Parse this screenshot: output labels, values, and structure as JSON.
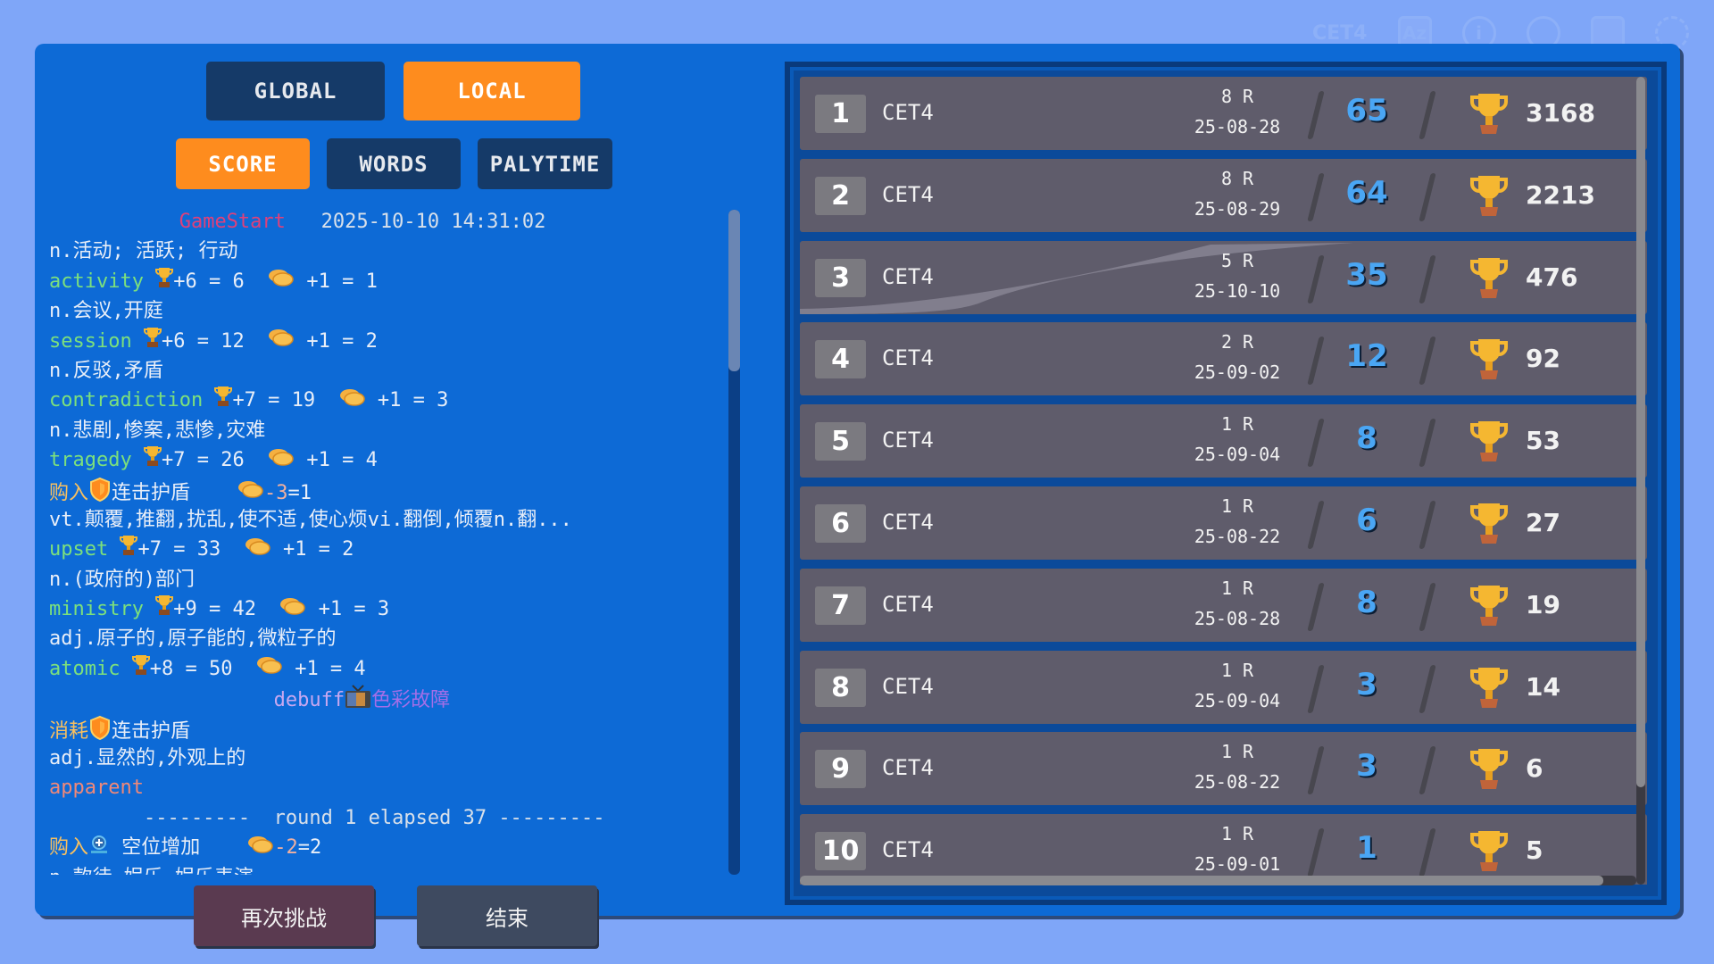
{
  "topbar": {
    "label": "CET4",
    "icons": [
      "az-sort-icon",
      "info-icon",
      "shield-outline-icon",
      "settings-toggle-icon",
      "fullscreen-icon"
    ]
  },
  "scope_tabs": [
    {
      "label": "GLOBAL",
      "active": false
    },
    {
      "label": "LOCAL",
      "active": true
    }
  ],
  "sort_tabs": [
    {
      "label": "SCORE",
      "active": true
    },
    {
      "label": "WORDS",
      "active": false
    },
    {
      "label": "PALYTIME",
      "active": false
    }
  ],
  "colors": {
    "panel": "#0d6ad6",
    "active": "#fe8c1e",
    "inactive": "#153a68",
    "word": "#7ce07c",
    "cn": "#e8eef8",
    "shop": "#f8c060",
    "gamestart": "#e0407a",
    "debuff_en": "#c8a8f0",
    "debuff_cn": "#a46ee8",
    "missed": "#f08878",
    "score": "#4aa6f4"
  },
  "log": [
    [
      {
        "t": "           "
      },
      {
        "t": "GameStart",
        "c": "gamestart"
      },
      {
        "t": "   2025-10-10 14:31:02",
        "c": "time"
      }
    ],
    [
      {
        "t": "n.活动; 活跃; 行动"
      }
    ],
    [
      {
        "t": "activity",
        "c": "word"
      },
      {
        "t": " "
      },
      {
        "i": "trophy"
      },
      {
        "t": "+6 = 6  "
      },
      {
        "i": "coin"
      },
      {
        "t": " +1 = 1"
      }
    ],
    [
      {
        "t": "n.会议,开庭"
      }
    ],
    [
      {
        "t": "session",
        "c": "word"
      },
      {
        "t": " "
      },
      {
        "i": "trophy"
      },
      {
        "t": "+6 = 12  "
      },
      {
        "i": "coin"
      },
      {
        "t": " +1 = 2"
      }
    ],
    [
      {
        "t": "n.反驳,矛盾"
      }
    ],
    [
      {
        "t": "contradiction",
        "c": "word"
      },
      {
        "t": " "
      },
      {
        "i": "trophy"
      },
      {
        "t": "+7 = 19  "
      },
      {
        "i": "coin"
      },
      {
        "t": " +1 = 3"
      }
    ],
    [
      {
        "t": "n.悲剧,惨案,悲惨,灾难"
      }
    ],
    [
      {
        "t": "tragedy",
        "c": "word"
      },
      {
        "t": " "
      },
      {
        "i": "trophy"
      },
      {
        "t": "+7 = 26  "
      },
      {
        "i": "coin"
      },
      {
        "t": " +1 = 4"
      }
    ],
    [
      {
        "t": "购入",
        "c": "shop"
      },
      {
        "i": "shield"
      },
      {
        "t": "连击护盾    "
      },
      {
        "i": "coin"
      },
      {
        "t": "-3",
        "c": "neg"
      },
      {
        "t": "=1"
      }
    ],
    [
      {
        "t": "vt.颠覆,推翻,扰乱,使不适,使心烦vi.翻倒,倾覆n.翻..."
      }
    ],
    [
      {
        "t": "upset",
        "c": "word"
      },
      {
        "t": " "
      },
      {
        "i": "trophy"
      },
      {
        "t": "+7 = 33  "
      },
      {
        "i": "coin"
      },
      {
        "t": " +1 = 2"
      }
    ],
    [
      {
        "t": "n.(政府的)部门"
      }
    ],
    [
      {
        "t": "ministry",
        "c": "word"
      },
      {
        "t": " "
      },
      {
        "i": "trophy"
      },
      {
        "t": "+9 = 42  "
      },
      {
        "i": "coin"
      },
      {
        "t": " +1 = 3"
      }
    ],
    [
      {
        "t": "adj.原子的,原子能的,微粒子的"
      }
    ],
    [
      {
        "t": "atomic",
        "c": "word"
      },
      {
        "t": " "
      },
      {
        "i": "trophy"
      },
      {
        "t": "+8 = 50  "
      },
      {
        "i": "coin"
      },
      {
        "t": " +1 = 4"
      }
    ],
    [
      {
        "t": "                   "
      },
      {
        "t": "debuff",
        "c": "debuff_en"
      },
      {
        "i": "tv"
      },
      {
        "t": "色彩故障",
        "c": "debuff_cn"
      }
    ],
    [
      {
        "t": "消耗",
        "c": "shop"
      },
      {
        "i": "shield"
      },
      {
        "t": "连击护盾"
      }
    ],
    [
      {
        "t": "adj.显然的,外观上的"
      }
    ],
    [
      {
        "t": "apparent",
        "c": "missed"
      }
    ],
    [
      {
        "t": "        ---------  round 1 elapsed 37 ---------",
        "c": "time"
      }
    ],
    [
      {
        "t": "购入",
        "c": "shop"
      },
      {
        "i": "slot"
      },
      {
        "t": " 空位增加    "
      },
      {
        "i": "coin"
      },
      {
        "t": "-2",
        "c": "neg"
      },
      {
        "t": "=2"
      }
    ],
    [
      {
        "t": "n.款待,娱乐,娱乐表演"
      }
    ]
  ],
  "leaderboard": [
    {
      "rank": "1",
      "name": "CET4",
      "rounds": "8 R",
      "date": "25-08-28",
      "words": "65",
      "score": "3168"
    },
    {
      "rank": "2",
      "name": "CET4",
      "rounds": "8 R",
      "date": "25-08-29",
      "words": "64",
      "score": "2213"
    },
    {
      "rank": "3",
      "name": "CET4",
      "rounds": "5 R",
      "date": "25-10-10",
      "words": "35",
      "score": "476"
    },
    {
      "rank": "4",
      "name": "CET4",
      "rounds": "2 R",
      "date": "25-09-02",
      "words": "12",
      "score": "92"
    },
    {
      "rank": "5",
      "name": "CET4",
      "rounds": "1 R",
      "date": "25-09-04",
      "words": "8",
      "score": "53"
    },
    {
      "rank": "6",
      "name": "CET4",
      "rounds": "1 R",
      "date": "25-08-22",
      "words": "6",
      "score": "27"
    },
    {
      "rank": "7",
      "name": "CET4",
      "rounds": "1 R",
      "date": "25-08-28",
      "words": "8",
      "score": "19"
    },
    {
      "rank": "8",
      "name": "CET4",
      "rounds": "1 R",
      "date": "25-09-04",
      "words": "3",
      "score": "14"
    },
    {
      "rank": "9",
      "name": "CET4",
      "rounds": "1 R",
      "date": "25-08-22",
      "words": "3",
      "score": "6"
    },
    {
      "rank": "10",
      "name": "CET4",
      "rounds": "1 R",
      "date": "25-09-01",
      "words": "1",
      "score": "5"
    }
  ],
  "footer": {
    "retry_label": "再次挑战",
    "end_label": "结束"
  }
}
